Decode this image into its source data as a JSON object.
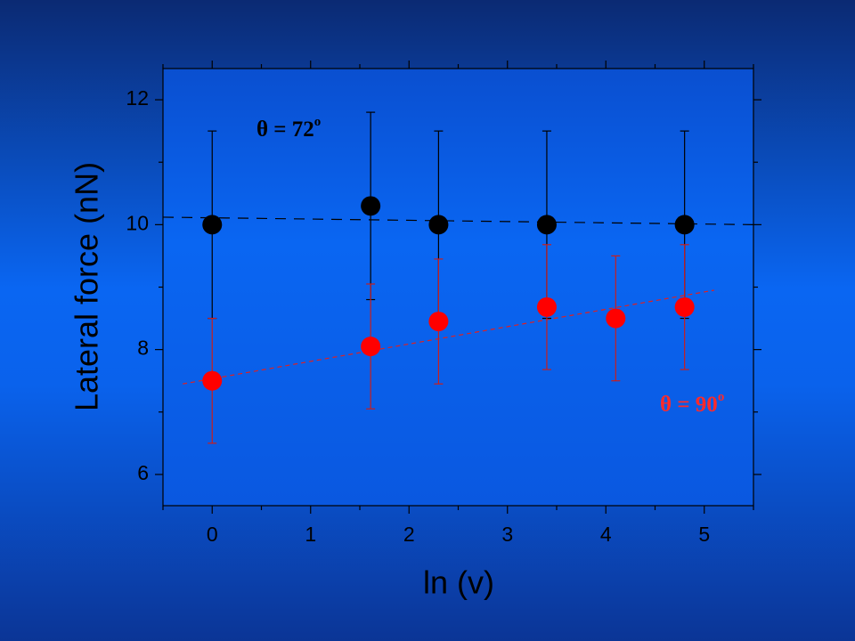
{
  "chart_data": {
    "type": "scatter",
    "x_label": "ln (v)",
    "y_label": "Lateral force (nN)",
    "xlim": [
      -0.5,
      5.5
    ],
    "ylim": [
      5.5,
      12.5
    ],
    "xticks": [
      0,
      1,
      2,
      3,
      4,
      5
    ],
    "yticks": [
      6,
      8,
      10,
      12
    ],
    "xminorticks": [
      -0.5,
      0.5,
      1.5,
      2.5,
      3.5,
      4.5,
      5.5
    ],
    "yminorticks": [
      7,
      9,
      11
    ],
    "series": [
      {
        "color": "#000000",
        "x": [
          0,
          1.61,
          2.3,
          3.4,
          4.8
        ],
        "values": [
          10,
          10.3,
          10,
          10,
          10
        ],
        "errors": [
          1.5,
          1.5,
          1.5,
          1.5,
          1.5
        ]
      },
      {
        "color": "#ff0000",
        "x": [
          0,
          1.61,
          2.3,
          3.4,
          4.1,
          4.8
        ],
        "values": [
          7.5,
          8.05,
          8.45,
          8.68,
          8.5,
          8.68
        ],
        "errors": [
          1.0,
          1.0,
          1.0,
          1.0,
          1.0,
          1.0
        ]
      }
    ],
    "fits": [
      {
        "color": "#000000",
        "x": [
          -0.5,
          5.5
        ],
        "values": [
          10.12,
          10.0
        ]
      },
      {
        "color": "#e02020",
        "x": [
          -0.3,
          5.1
        ],
        "values": [
          7.45,
          8.95
        ]
      }
    ],
    "annotations": [
      {
        "text": "θ = 72",
        "sup": "o",
        "color": "#000000",
        "x": 0.45,
        "y": 11.5
      },
      {
        "text": "θ = 90",
        "sup": "o",
        "color": "#ff2a2a",
        "x": 4.55,
        "y": 7.1
      }
    ]
  }
}
